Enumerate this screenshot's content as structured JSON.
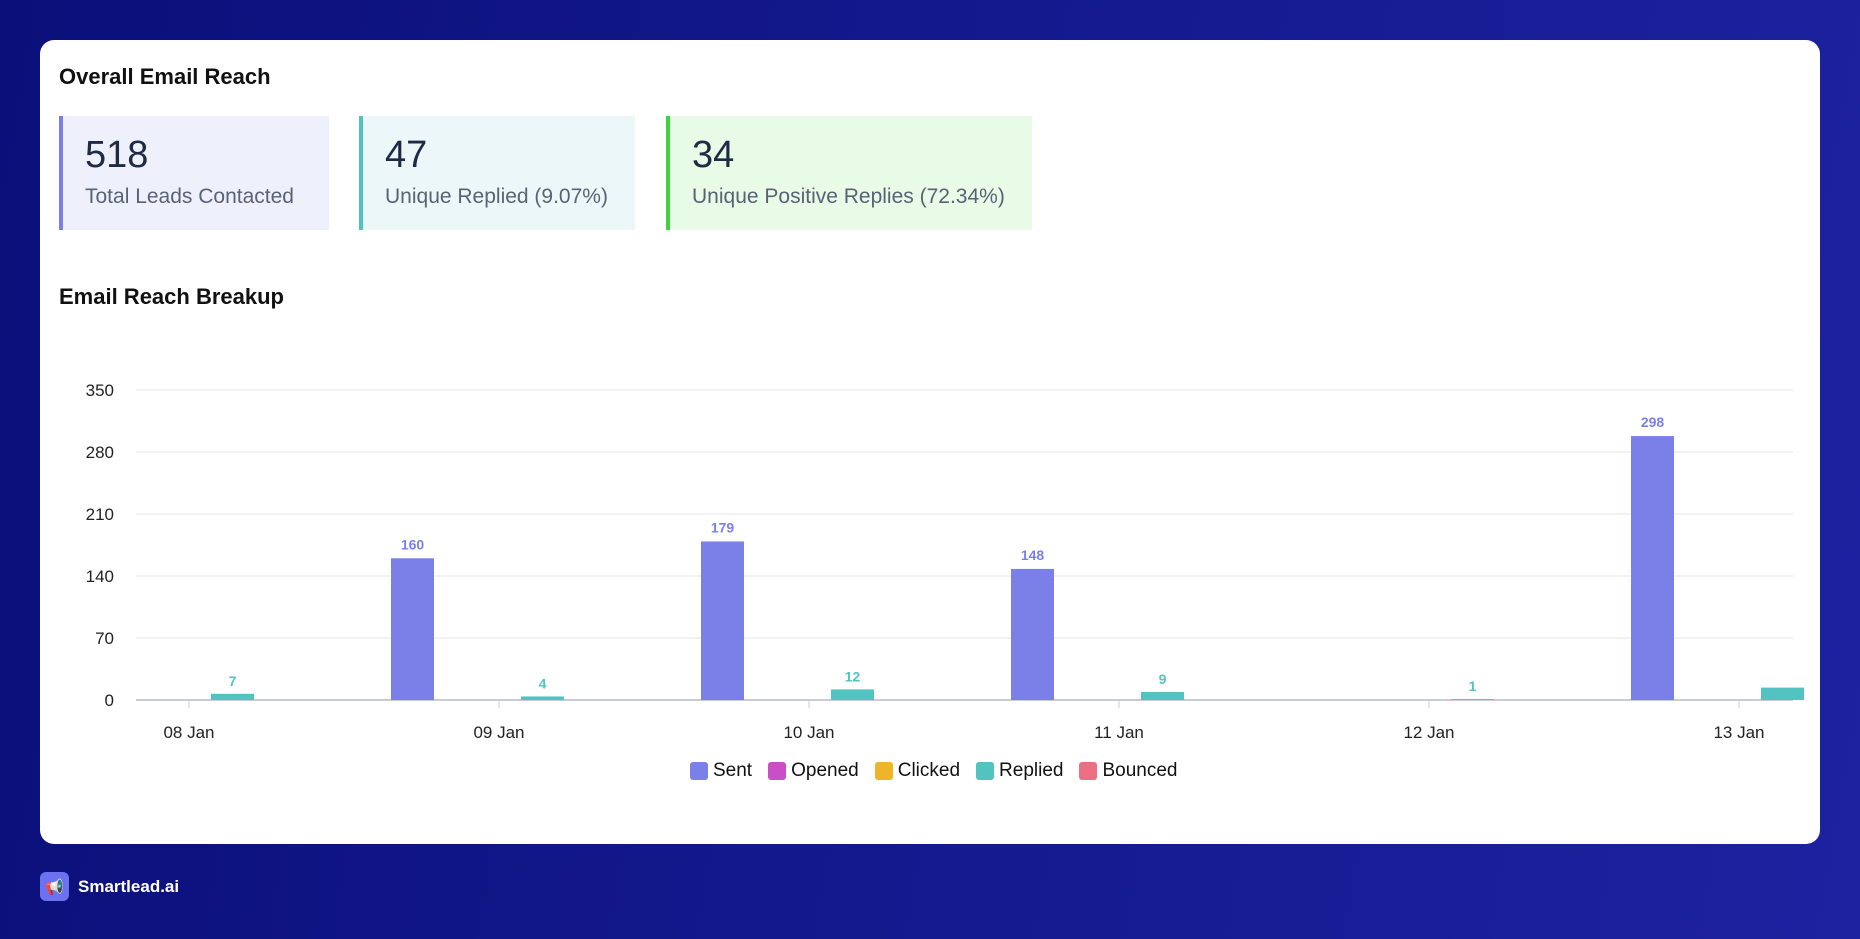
{
  "header": {
    "title": "Overall Email Reach"
  },
  "stats": [
    {
      "value": "518",
      "label": "Total Leads Contacted"
    },
    {
      "value": "47",
      "label": "Unique Replied (9.07%)"
    },
    {
      "value": "34",
      "label": "Unique Positive Replies (72.34%)"
    }
  ],
  "breakup": {
    "title": "Email Reach Breakup"
  },
  "brand": {
    "name": "Smartlead.ai",
    "icon": "megaphone-icon"
  },
  "colors": {
    "sent": "#7b80e8",
    "opened": "#c84fc8",
    "clicked": "#f0b429",
    "replied": "#53c3c1",
    "bounced": "#ee6f84"
  },
  "chart_data": {
    "type": "bar",
    "categories": [
      "08 Jan",
      "09 Jan",
      "10 Jan",
      "11 Jan",
      "12 Jan",
      "13 Jan"
    ],
    "yticks": [
      0,
      70,
      140,
      210,
      280,
      350
    ],
    "ylim": [
      0,
      350
    ],
    "grid": true,
    "legend_position": "bottom",
    "series": [
      {
        "name": "Sent",
        "values": [
          0,
          160,
          179,
          148,
          0,
          298
        ]
      },
      {
        "name": "Opened",
        "values": [
          0,
          0,
          0,
          0,
          0,
          0
        ]
      },
      {
        "name": "Clicked",
        "values": [
          0,
          0,
          0,
          0,
          0,
          0
        ]
      },
      {
        "name": "Replied",
        "values": [
          7,
          4,
          12,
          9,
          1,
          14
        ]
      },
      {
        "name": "Bounced",
        "values": [
          0,
          0,
          0,
          0,
          0,
          0
        ]
      }
    ],
    "data_labels": {
      "Sent": [
        "",
        "160",
        "179",
        "148",
        "",
        "298"
      ],
      "Replied": [
        "7",
        "4",
        "12",
        "9",
        "1",
        ""
      ]
    }
  }
}
